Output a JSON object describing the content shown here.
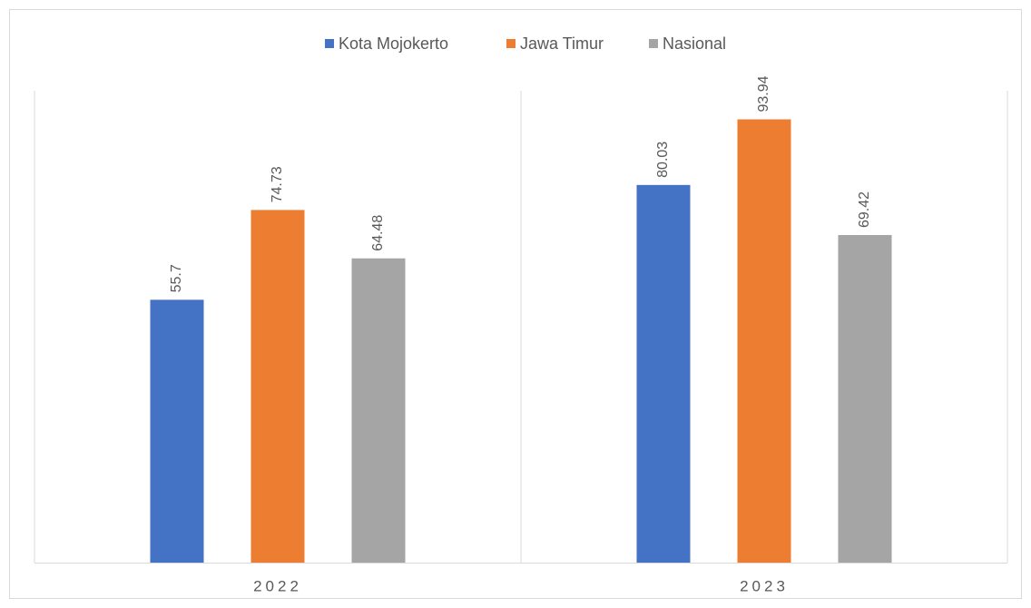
{
  "chart_data": {
    "type": "bar",
    "categories": [
      "2022",
      "2023"
    ],
    "series": [
      {
        "name": "Kota Mojokerto",
        "color": "#4472c4",
        "values": [
          55.7,
          80.03
        ]
      },
      {
        "name": "Jawa Timur",
        "color": "#ed7d31",
        "values": [
          74.73,
          93.94
        ]
      },
      {
        "name": "Nasional",
        "color": "#a5a5a5",
        "values": [
          64.48,
          69.42
        ]
      }
    ],
    "ylim": [
      0,
      100
    ]
  }
}
